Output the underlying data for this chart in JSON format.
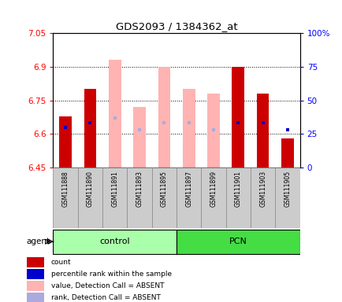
{
  "title": "GDS2093 / 1384362_at",
  "samples": [
    "GSM111888",
    "GSM111890",
    "GSM111891",
    "GSM111893",
    "GSM111895",
    "GSM111897",
    "GSM111899",
    "GSM111901",
    "GSM111903",
    "GSM111905"
  ],
  "ylim_left": [
    6.45,
    7.05
  ],
  "ylim_right": [
    0,
    100
  ],
  "yticks_left": [
    6.45,
    6.6,
    6.75,
    6.9,
    7.05
  ],
  "yticks_right": [
    0,
    25,
    50,
    75,
    100
  ],
  "ytick_labels_left": [
    "6.45",
    "6.6",
    "6.75",
    "6.9",
    "7.05"
  ],
  "ytick_labels_right": [
    "0",
    "25",
    "50",
    "75",
    "100%"
  ],
  "red_values": [
    6.68,
    6.8,
    6.45,
    6.45,
    6.45,
    6.45,
    6.45,
    6.9,
    6.78,
    6.58
  ],
  "pink_values": [
    6.45,
    6.45,
    6.93,
    6.72,
    6.9,
    6.8,
    6.78,
    6.45,
    6.45,
    6.45
  ],
  "blue_rank": [
    6.63,
    6.65,
    6.65,
    6.62,
    6.65,
    6.65,
    6.62,
    6.65,
    6.65,
    6.62
  ],
  "lav_rank": [
    6.45,
    6.45,
    6.67,
    6.62,
    6.65,
    6.65,
    6.62,
    6.45,
    6.45,
    6.45
  ],
  "show_blue": [
    1,
    1,
    0,
    0,
    0,
    0,
    0,
    1,
    1,
    1
  ],
  "show_lav": [
    0,
    0,
    1,
    1,
    1,
    1,
    1,
    0,
    0,
    0
  ],
  "red_bar_color": "#cc0000",
  "pink_bar_color": "#ffb3b3",
  "blue_dot_color": "#0000cc",
  "lav_dot_color": "#aaaadd",
  "bar_width": 0.5,
  "grid_lines": [
    6.6,
    6.75,
    6.9
  ],
  "control_color": "#aaffaa",
  "pcn_color": "#44dd44",
  "legend_items": [
    {
      "color": "#cc0000",
      "label": "count"
    },
    {
      "color": "#0000cc",
      "label": "percentile rank within the sample"
    },
    {
      "color": "#ffb3b3",
      "label": "value, Detection Call = ABSENT"
    },
    {
      "color": "#aaaadd",
      "label": "rank, Detection Call = ABSENT"
    }
  ],
  "agent_label": "agent"
}
